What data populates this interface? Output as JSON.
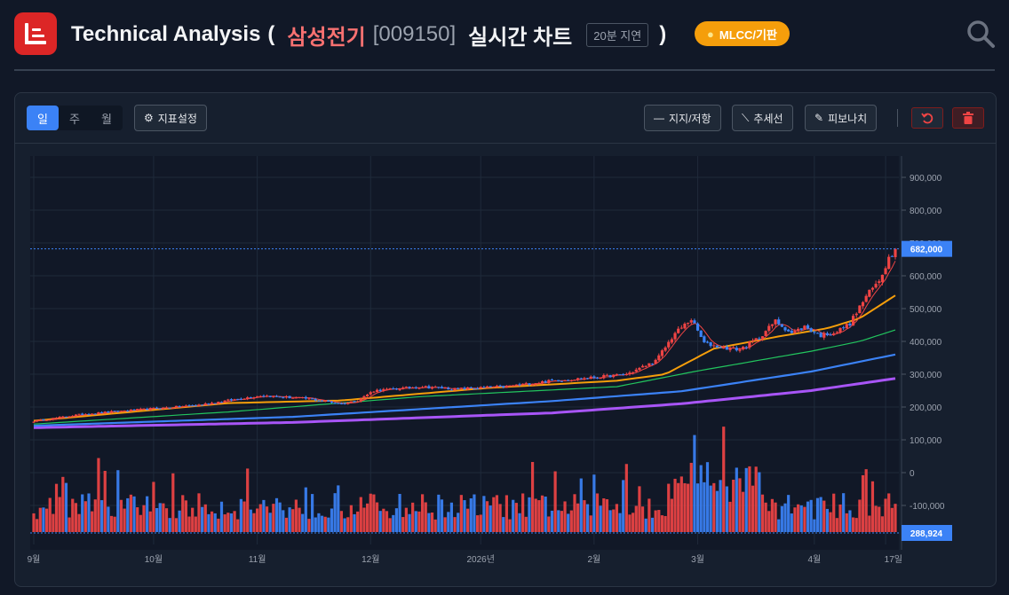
{
  "header": {
    "title": "Technical Analysis",
    "paren_open": "(",
    "paren_close": ")",
    "stock_name": "삼성전기",
    "stock_code": "[009150]",
    "subtitle": "실시간 차트",
    "delay_badge": "20분 지연",
    "sector_badge": "MLCC/기판",
    "icons": {
      "logo": "chart-logo-icon",
      "sector": "bulb-icon",
      "search": "search-icon"
    }
  },
  "toolbar": {
    "periods": [
      {
        "label": "일",
        "active": true
      },
      {
        "label": "주",
        "active": false
      },
      {
        "label": "월",
        "active": false
      }
    ],
    "indicator_settings": "지표설정",
    "support_resistance": "지지/저항",
    "trendline": "추세선",
    "fibonacci": "피보나치",
    "icons": {
      "settings": "gear-icon",
      "line": "horizontal-line-icon",
      "trend": "trendline-icon",
      "fib": "ruler-icon",
      "undo": "undo-icon",
      "delete": "trash-icon"
    }
  },
  "colors": {
    "up": "#ef4444",
    "down": "#3b82f6",
    "ma5": "#ef4444",
    "ma20": "#f59e0b",
    "ma60": "#22c55e",
    "ma120": "#3b82f6",
    "ma240": "#a855f7",
    "accent": "#3b82f6",
    "sector": "#f59e0b"
  },
  "chart_data": {
    "type": "candlestick",
    "y_ticks": [
      "900,000",
      "800,000",
      "700,000",
      "600,000",
      "500,000",
      "400,000",
      "300,000",
      "200,000",
      "100,000",
      "0",
      "-100,000"
    ],
    "y_tick_values": [
      900000,
      800000,
      700000,
      600000,
      500000,
      400000,
      300000,
      200000,
      100000,
      0,
      -100000
    ],
    "price_ylim": [
      0,
      900000
    ],
    "x_tick_labels": [
      "9월",
      "10월",
      "11월",
      "12월",
      "2026년",
      "2월",
      "3월",
      "4월",
      "17일"
    ],
    "x_tick_bar_index": [
      0,
      37,
      69,
      104,
      138,
      173,
      205,
      241,
      263
    ],
    "last_price": 682000,
    "last_price_label": "682,000",
    "last_volume_label": "288,924",
    "close_anchors": [
      [
        0,
        157000
      ],
      [
        15,
        178000
      ],
      [
        30,
        190000
      ],
      [
        50,
        205000
      ],
      [
        70,
        235000
      ],
      [
        85,
        225000
      ],
      [
        95,
        210000
      ],
      [
        100,
        220000
      ],
      [
        105,
        250000
      ],
      [
        120,
        262000
      ],
      [
        130,
        255000
      ],
      [
        145,
        262000
      ],
      [
        160,
        280000
      ],
      [
        173,
        290000
      ],
      [
        183,
        300000
      ],
      [
        192,
        340000
      ],
      [
        198,
        425000
      ],
      [
        203,
        468000
      ],
      [
        207,
        395000
      ],
      [
        212,
        382000
      ],
      [
        218,
        375000
      ],
      [
        224,
        412000
      ],
      [
        229,
        462000
      ],
      [
        234,
        425000
      ],
      [
        238,
        445000
      ],
      [
        243,
        418000
      ],
      [
        248,
        430000
      ],
      [
        252,
        455000
      ],
      [
        257,
        538000
      ],
      [
        261,
        585000
      ],
      [
        264,
        655000
      ],
      [
        266,
        682000
      ]
    ],
    "ma_anchors": {
      "ma20": [
        [
          0,
          158000
        ],
        [
          60,
          212000
        ],
        [
          95,
          220000
        ],
        [
          140,
          258000
        ],
        [
          180,
          280000
        ],
        [
          195,
          300000
        ],
        [
          210,
          378000
        ],
        [
          230,
          415000
        ],
        [
          245,
          440000
        ],
        [
          255,
          470000
        ],
        [
          266,
          540000
        ]
      ],
      "ma60": [
        [
          0,
          148000
        ],
        [
          60,
          185000
        ],
        [
          120,
          232000
        ],
        [
          180,
          262000
        ],
        [
          205,
          310000
        ],
        [
          240,
          370000
        ],
        [
          255,
          400000
        ],
        [
          266,
          435000
        ]
      ],
      "ma120": [
        [
          0,
          143000
        ],
        [
          80,
          170000
        ],
        [
          160,
          218000
        ],
        [
          200,
          248000
        ],
        [
          240,
          308000
        ],
        [
          266,
          360000
        ]
      ],
      "ma240": [
        [
          0,
          137000
        ],
        [
          80,
          153000
        ],
        [
          160,
          182000
        ],
        [
          200,
          210000
        ],
        [
          240,
          250000
        ],
        [
          266,
          287000
        ]
      ]
    }
  }
}
